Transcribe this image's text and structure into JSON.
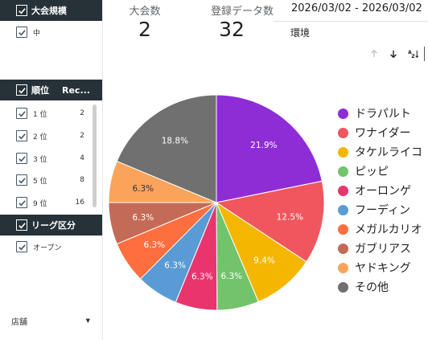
{
  "filters": {
    "scale": {
      "header": "大会規模",
      "items": [
        {
          "label": "中",
          "checked": true
        }
      ]
    },
    "rank": {
      "header": "順位",
      "header_col2": "Rec...",
      "items": [
        {
          "label": "1 位",
          "count": "2"
        },
        {
          "label": "2 位",
          "count": "2"
        },
        {
          "label": "3 位",
          "count": "4"
        },
        {
          "label": "5 位",
          "count": "8"
        },
        {
          "label": "9 位",
          "count": "16"
        }
      ]
    },
    "league": {
      "header": "リーグ区分",
      "items": [
        {
          "label": "オープン",
          "checked": true
        }
      ]
    },
    "store": {
      "label": "店舗"
    }
  },
  "scorecards": {
    "tournaments": {
      "label": "大会数",
      "value": "2"
    },
    "records": {
      "label": "登録データ数",
      "value": "32"
    }
  },
  "date_range": "2026/03/02 - 2026/03/02",
  "environment_label": "環境",
  "toolbar": {
    "icons": [
      "arrow-up-icon",
      "arrow-down-icon",
      "sort-az-icon"
    ]
  },
  "chart_data": {
    "type": "pie",
    "slices": [
      {
        "label": "ドラパルト",
        "value": 21.9,
        "display": "21.9%",
        "color": "#8e2dd6"
      },
      {
        "label": "ワナイダー",
        "value": 12.5,
        "display": "12.5%",
        "color": "#f0565e"
      },
      {
        "label": "タケルライコ",
        "value": 9.4,
        "display": "9.4%",
        "color": "#f5b600"
      },
      {
        "label": "ピッピ",
        "value": 6.3,
        "display": "6.3%",
        "color": "#72c36b"
      },
      {
        "label": "オーロンゲ",
        "value": 6.3,
        "display": "6.3%",
        "color": "#e8356e"
      },
      {
        "label": "フーディン",
        "value": 6.3,
        "display": "6.3%",
        "color": "#5a9bd5"
      },
      {
        "label": "メガルカリオ",
        "value": 6.3,
        "display": "6.3%",
        "color": "#ff6e3f"
      },
      {
        "label": "ガブリアス",
        "value": 6.3,
        "display": "6.3%",
        "color": "#c46b57"
      },
      {
        "label": "ヤドキング",
        "value": 6.3,
        "display": "6.3%",
        "color": "#f9a45a"
      },
      {
        "label": "その他",
        "value": 18.8,
        "display": "18.8%",
        "color": "#707070"
      }
    ],
    "legend_position": "right"
  }
}
